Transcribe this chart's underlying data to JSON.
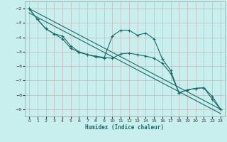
{
  "xlabel": "Humidex (Indice chaleur)",
  "background_color": "#c8eeed",
  "grid_color": "#c8b8b8",
  "line_color": "#1a6b6b",
  "xlim": [
    -0.5,
    23.5
  ],
  "ylim": [
    -9.5,
    -1.5
  ],
  "xticks": [
    0,
    1,
    2,
    3,
    4,
    5,
    6,
    7,
    8,
    9,
    10,
    11,
    12,
    13,
    14,
    15,
    16,
    17,
    18,
    19,
    20,
    21,
    22,
    23
  ],
  "yticks": [
    -9,
    -8,
    -7,
    -6,
    -5,
    -4,
    -3,
    -2
  ],
  "curve1_x": [
    0,
    1,
    2,
    3,
    4,
    5,
    6,
    7,
    8,
    9,
    10,
    11,
    12,
    13,
    14,
    15,
    16,
    17,
    18,
    19,
    20,
    21,
    22,
    23
  ],
  "curve1_y": [
    -2.0,
    -2.75,
    -3.4,
    -3.75,
    -3.9,
    -4.6,
    -5.0,
    -5.2,
    -5.35,
    -5.45,
    -3.9,
    -3.5,
    -3.5,
    -3.85,
    -3.7,
    -4.1,
    -5.5,
    -6.3,
    -7.85,
    -7.65,
    -7.55,
    -7.5,
    -8.1,
    -9.0
  ],
  "curve2_x": [
    0,
    1,
    2,
    3,
    4,
    5,
    6,
    7,
    8,
    9,
    10,
    11,
    12,
    13,
    14,
    15,
    16,
    17,
    18,
    19,
    20,
    21,
    22,
    23
  ],
  "curve2_y": [
    -2.0,
    -2.75,
    -3.4,
    -3.75,
    -4.1,
    -4.75,
    -5.05,
    -5.2,
    -5.3,
    -5.4,
    -5.45,
    -5.15,
    -5.1,
    -5.2,
    -5.3,
    -5.45,
    -5.8,
    -6.5,
    -7.85,
    -7.65,
    -7.55,
    -7.5,
    -8.3,
    -9.0
  ],
  "line1_x": [
    0,
    23
  ],
  "line1_y": [
    -2.0,
    -9.0
  ],
  "line2_x": [
    0,
    23
  ],
  "line2_y": [
    -2.3,
    -9.3
  ]
}
